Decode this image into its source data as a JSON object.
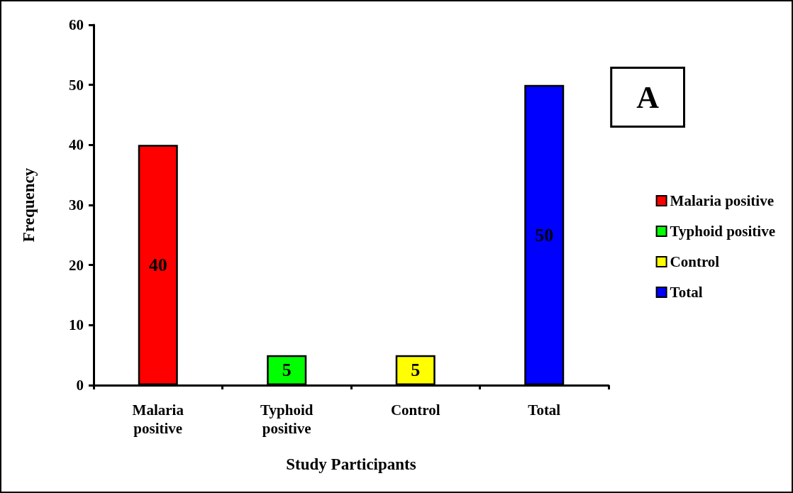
{
  "chart_data": {
    "type": "bar",
    "xlabel": "Study Participants",
    "ylabel": "Frequency",
    "categories": [
      "Malaria\npositive",
      "Typhoid\npositive",
      "Control",
      "Total"
    ],
    "series": [
      {
        "name": "Malaria positive",
        "color": "#ff0000",
        "values": [
          40,
          null,
          null,
          null
        ]
      },
      {
        "name": "Typhoid positive",
        "color": "#00ff00",
        "values": [
          null,
          5,
          null,
          null
        ]
      },
      {
        "name": "Control",
        "color": "#ffff00",
        "values": [
          null,
          null,
          5,
          null
        ]
      },
      {
        "name": "Total",
        "color": "#0000ff",
        "values": [
          null,
          null,
          null,
          50
        ]
      }
    ],
    "ylim": [
      0,
      60
    ],
    "yticks": [
      0,
      10,
      20,
      30,
      40,
      50,
      60
    ],
    "grid": false,
    "legend": "right",
    "data_labels": true,
    "annotations": [
      "A"
    ]
  }
}
